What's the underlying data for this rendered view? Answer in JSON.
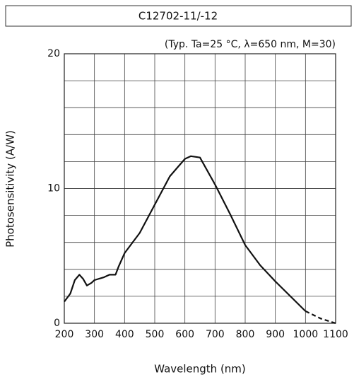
{
  "chart_data": {
    "type": "line",
    "title": "C12702-11/-12",
    "subtitle": "(Typ. Ta=25 °C, λ=650 nm, M=30)",
    "x_label": "Wavelength (nm)",
    "y_label": "Photosensitivity (A/W)",
    "x": [
      200,
      220,
      235,
      250,
      262,
      275,
      290,
      300,
      330,
      350,
      370,
      380,
      400,
      450,
      500,
      550,
      600,
      620,
      650,
      700,
      750,
      800,
      850,
      900,
      950,
      1000,
      1050,
      1100
    ],
    "series": [
      {
        "color": "#111111",
        "values": [
          1.6,
          2.2,
          3.2,
          3.6,
          3.3,
          2.8,
          3.0,
          3.2,
          3.4,
          3.6,
          3.6,
          4.2,
          5.2,
          6.7,
          8.8,
          10.9,
          12.2,
          12.4,
          12.3,
          10.3,
          8.1,
          5.8,
          4.3,
          3.1,
          2.0,
          0.9,
          0.35,
          0
        ]
      }
    ],
    "dash_from": 1000,
    "xlim": [
      200,
      1100
    ],
    "xticks": [
      200,
      300,
      400,
      500,
      600,
      700,
      800,
      900,
      1000,
      1100
    ],
    "ylim": [
      0,
      20
    ],
    "yticks": [
      0,
      10,
      20
    ],
    "ygrid_step": 2,
    "grid": true
  }
}
